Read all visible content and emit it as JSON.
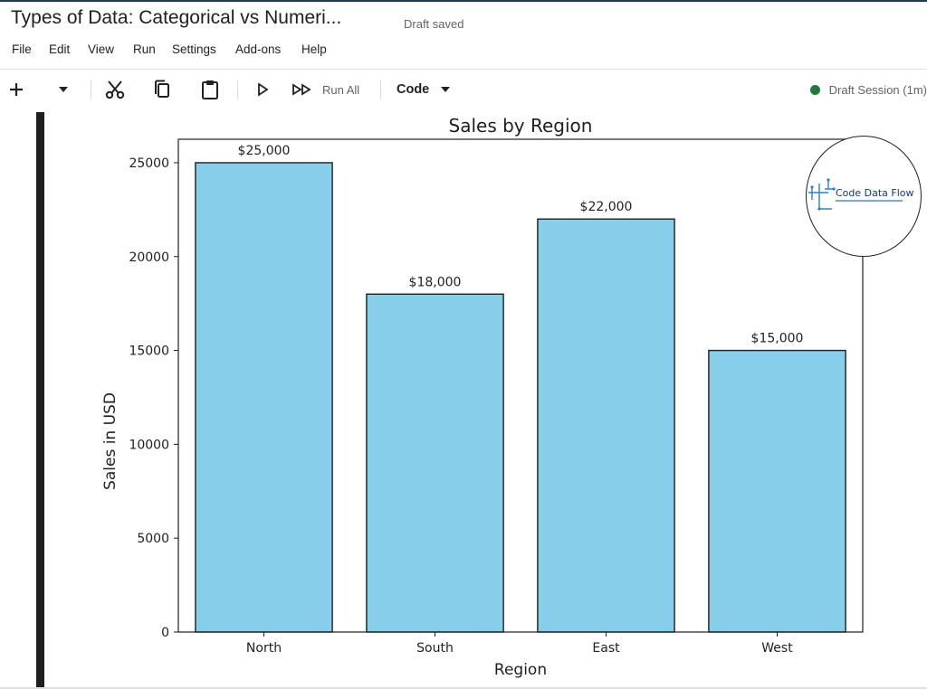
{
  "document": {
    "title": "Types of Data: Categorical vs Numeri...",
    "status": "Draft saved"
  },
  "menu": [
    "File",
    "Edit",
    "View",
    "Run",
    "Settings",
    "Add-ons",
    "Help"
  ],
  "toolbar": {
    "run_all_label": "Run All",
    "cell_type": "Code",
    "session_label": "Draft Session (1m)"
  },
  "logo": {
    "text": "Code Data Flow"
  },
  "colors": {
    "bar_fill": "#87CEEB",
    "bar_edge": "#1f1f1f",
    "session_dot": "#1e7a3a"
  },
  "chart_data": {
    "type": "bar",
    "title": "Sales by Region",
    "xlabel": "Region",
    "ylabel": "Sales in USD",
    "categories": [
      "North",
      "South",
      "East",
      "West"
    ],
    "values": [
      25000,
      18000,
      22000,
      15000
    ],
    "value_labels": [
      "$25,000",
      "$18,000",
      "$22,000",
      "$15,000"
    ],
    "ylim": [
      0,
      26250
    ],
    "yticks": [
      0,
      5000,
      10000,
      15000,
      20000,
      25000
    ],
    "ytick_labels": [
      "0",
      "5000",
      "10000",
      "15000",
      "20000",
      "25000"
    ]
  }
}
